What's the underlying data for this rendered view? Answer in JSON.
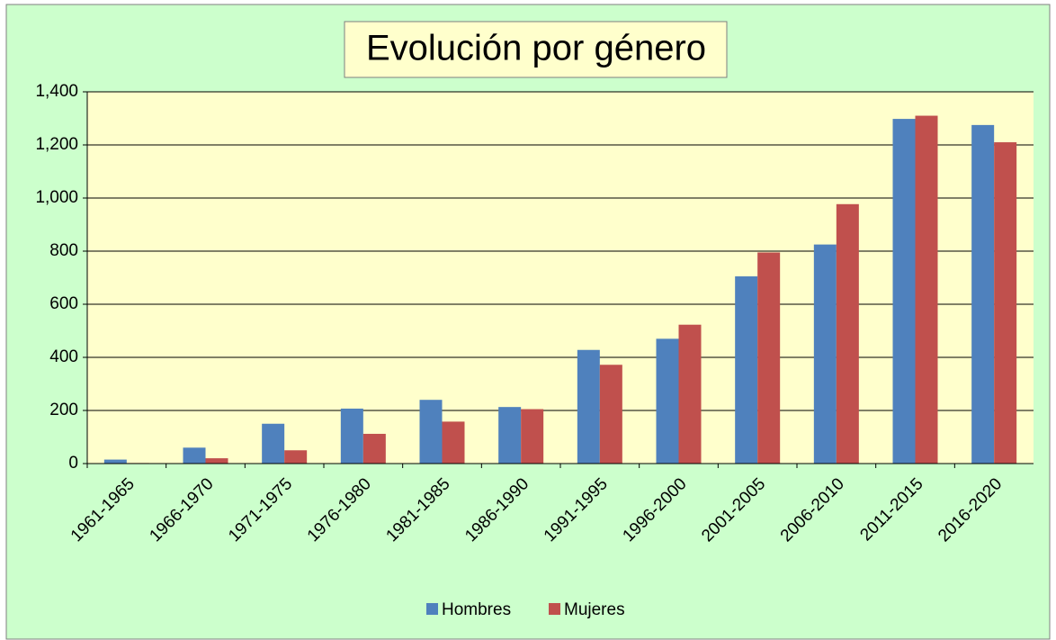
{
  "chart_data": {
    "type": "bar",
    "title": "Evolución por género",
    "categories": [
      "1961-1965",
      "1966-1970",
      "1971-1975",
      "1976-1980",
      "1981-1985",
      "1986-1990",
      "1991-1995",
      "1996-2000",
      "2001-2005",
      "2006-2010",
      "2011-2015",
      "2016-2020"
    ],
    "series": [
      {
        "name": "Hombres",
        "color": "#4f81bd",
        "values": [
          15,
          60,
          150,
          207,
          240,
          213,
          428,
          470,
          705,
          825,
          1298,
          1275
        ]
      },
      {
        "name": "Mujeres",
        "color": "#c0504d",
        "values": [
          2,
          20,
          50,
          112,
          158,
          205,
          372,
          523,
          795,
          977,
          1310,
          1210
        ]
      }
    ],
    "ylim": [
      0,
      1400
    ],
    "yticks": [
      0,
      200,
      400,
      600,
      800,
      {
        "value": 1000,
        "label": "1,000"
      },
      {
        "value": 1200,
        "label": "1,200"
      },
      {
        "value": 1400,
        "label": "1,400"
      }
    ],
    "grid": true,
    "legend": "bottom"
  }
}
